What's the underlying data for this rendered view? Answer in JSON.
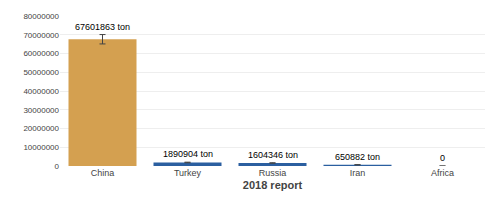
{
  "chart_data": {
    "type": "bar",
    "categories": [
      "China",
      "Turkey",
      "Russia",
      "Iran",
      "Africa"
    ],
    "values": [
      67601863,
      1890904,
      1604346,
      650882,
      0
    ],
    "errors": [
      2500000,
      150000,
      120000,
      60000,
      0
    ],
    "data_labels": true,
    "value_labels": [
      "67601863 ton",
      "1890904 ton",
      "1604346 ton",
      "650882 ton",
      "0"
    ],
    "colors": [
      "#D4A050",
      "#2B5FA0",
      "#2B5FA0",
      "#2B5FA0",
      "#2B5FA0"
    ],
    "xlabel": "2018 report",
    "ylim": [
      0,
      80000000
    ],
    "yticks": [
      0,
      10000000,
      20000000,
      30000000,
      40000000,
      50000000,
      60000000,
      70000000,
      80000000
    ],
    "grid": true
  }
}
